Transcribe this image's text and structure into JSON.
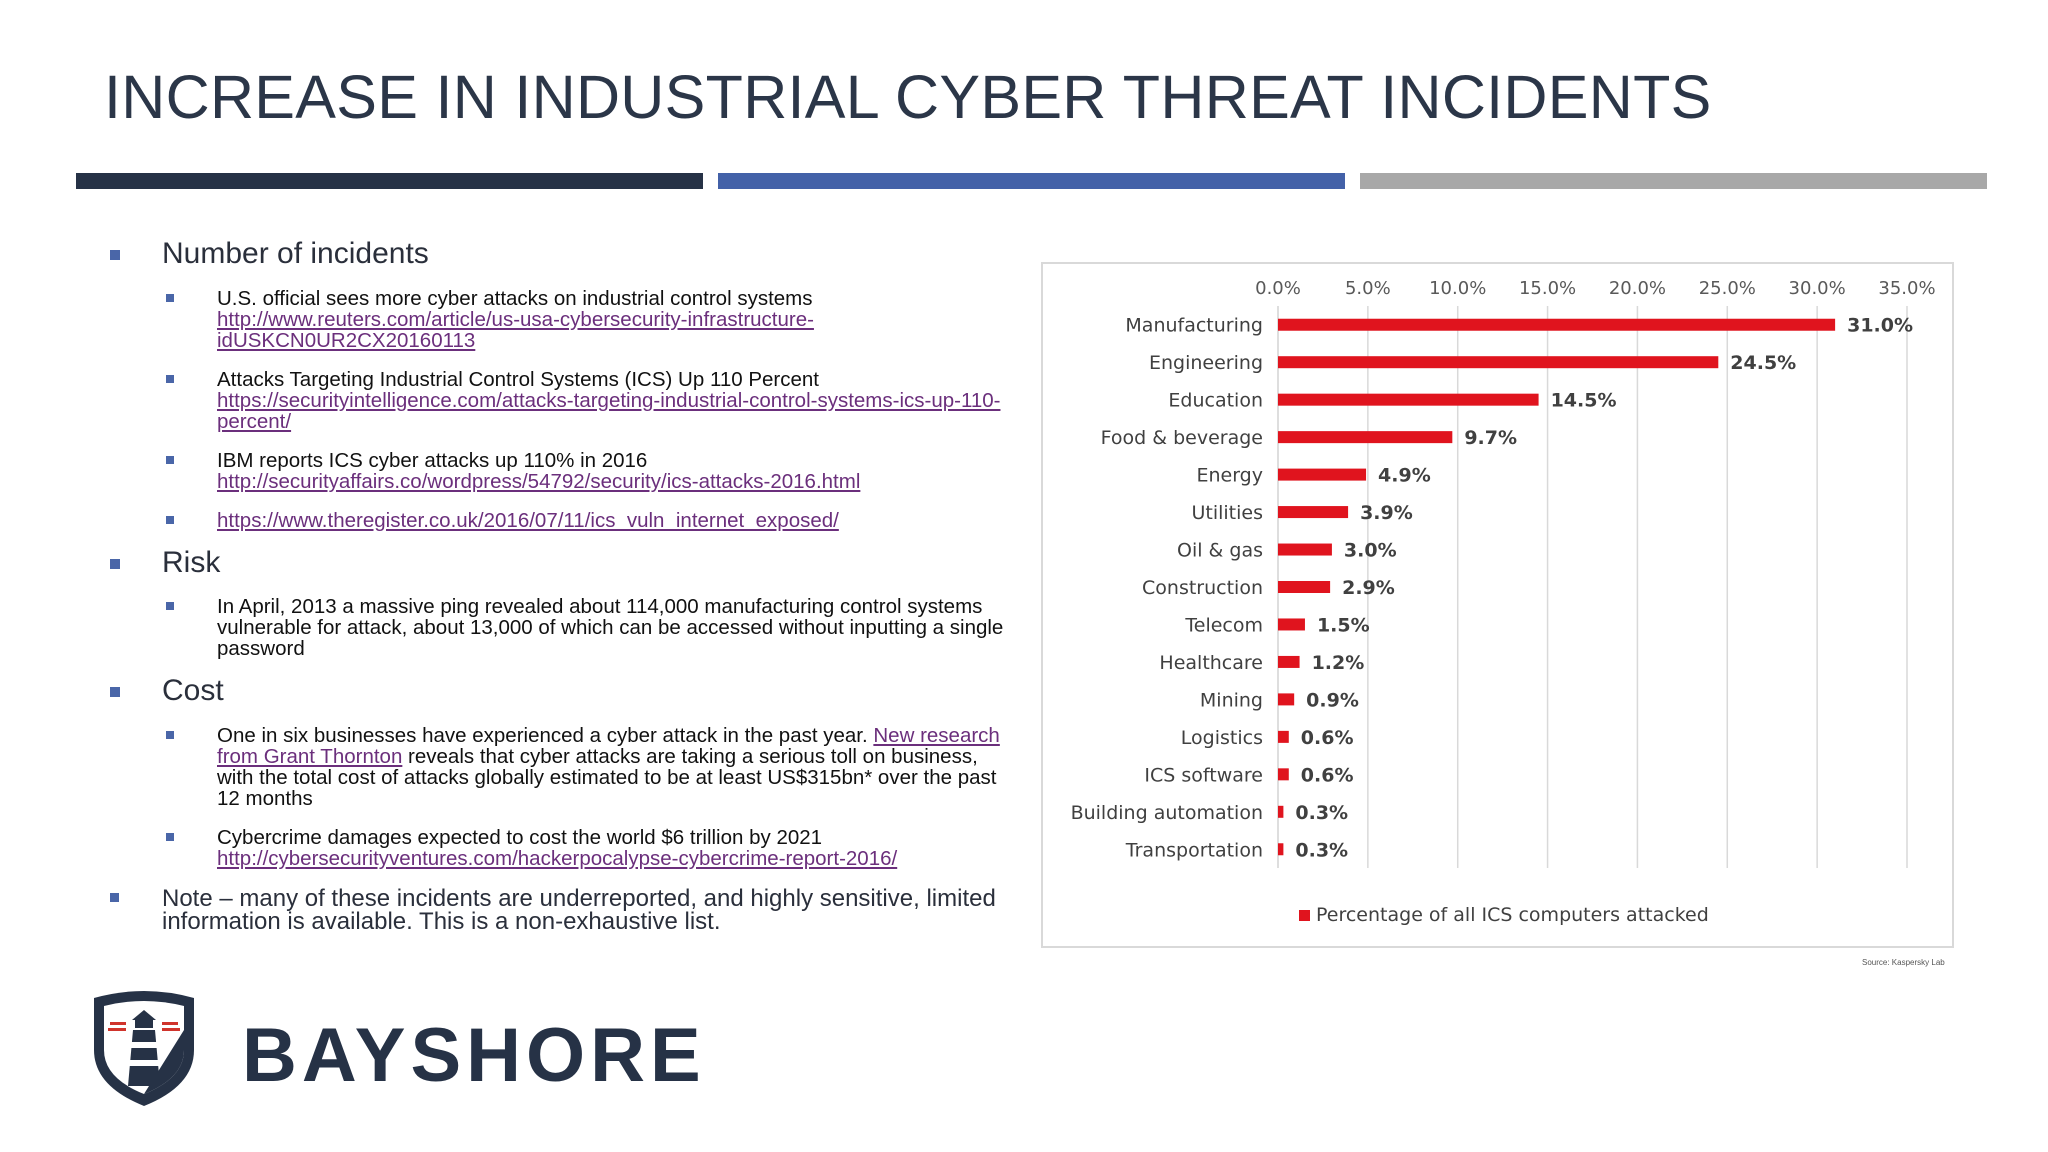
{
  "slide": {
    "title": "INCREASE IN INDUSTRIAL CYBER THREAT INCIDENTS",
    "band_colors": [
      "#263246",
      "#4361a8",
      "#a8a8a8"
    ],
    "brand_name": "BAYSHORE"
  },
  "sections": {
    "incidents": {
      "heading": "Number of incidents",
      "items": [
        {
          "text": "U.S. official sees more cyber attacks on industrial control systems",
          "link": "http://www.reuters.com/article/us-usa-cybersecurity-infrastructure-idUSKCN0UR2CX20160113"
        },
        {
          "text": "Attacks Targeting Industrial Control Systems (ICS) Up 110 Percent",
          "link": "https://securityintelligence.com/attacks-targeting-industrial-control-systems-ics-up-110-percent/"
        },
        {
          "text": "IBM reports ICS cyber attacks up 110% in 2016",
          "link": "http://securityaffairs.co/wordpress/54792/security/ics-attacks-2016.html"
        },
        {
          "link": "https://www.theregister.co.uk/2016/07/11/ics_vuln_internet_exposed/"
        }
      ]
    },
    "risk": {
      "heading": "Risk",
      "items": [
        {
          "text": "In April, 2013 a massive ping revealed about 114,000 manufacturing control systems vulnerable for attack, about 13,000 of which can be accessed without inputting a single password"
        }
      ]
    },
    "cost": {
      "heading": "Cost",
      "items": [
        {
          "text_a": "One in six businesses have experienced a cyber attack in the past year. ",
          "link": "New research from Grant Thornton",
          "text_b": " reveals that cyber attacks are taking a serious toll on business, with the total cost of attacks globally estimated to be at least US$315bn* over the past 12 months"
        },
        {
          "text": "Cybercrime damages expected to cost the world $6 trillion by 2021",
          "link": "http://cybersecurityventures.com/hackerpocalypse-cybercrime-report-2016/"
        }
      ]
    },
    "note": "Note – many of these incidents are underreported, and highly sensitive, limited information is available. This is a non-exhaustive list."
  },
  "chart_data": {
    "type": "bar",
    "orientation": "horizontal",
    "categories": [
      "Manufacturing",
      "Engineering",
      "Education",
      "Food & beverage",
      "Energy",
      "Utilities",
      "Oil & gas",
      "Construction",
      "Telecom",
      "Healthcare",
      "Mining",
      "Logistics",
      "ICS software",
      "Building automation",
      "Transportation"
    ],
    "series": [
      {
        "name": "Percentage of all ICS computers attacked",
        "values": [
          31.0,
          24.5,
          14.5,
          9.7,
          4.9,
          3.9,
          3.0,
          2.9,
          1.5,
          1.2,
          0.9,
          0.6,
          0.6,
          0.3,
          0.3
        ]
      }
    ],
    "data_labels": [
      "31.0%",
      "24.5%",
      "14.5%",
      "9.7%",
      "4.9%",
      "3.9%",
      "3.0%",
      "2.9%",
      "1.5%",
      "1.2%",
      "0.9%",
      "0.6%",
      "0.6%",
      "0.3%",
      "0.3%"
    ],
    "x_ticks": [
      "0.0%",
      "5.0%",
      "10.0%",
      "15.0%",
      "20.0%",
      "25.0%",
      "30.0%",
      "35.0%"
    ],
    "xlim": [
      0,
      35
    ],
    "x_axis_position": "top",
    "grid": true,
    "legend": "bottom",
    "bar_color": "#e0141e",
    "source": "Source: Kaspersky Lab"
  }
}
